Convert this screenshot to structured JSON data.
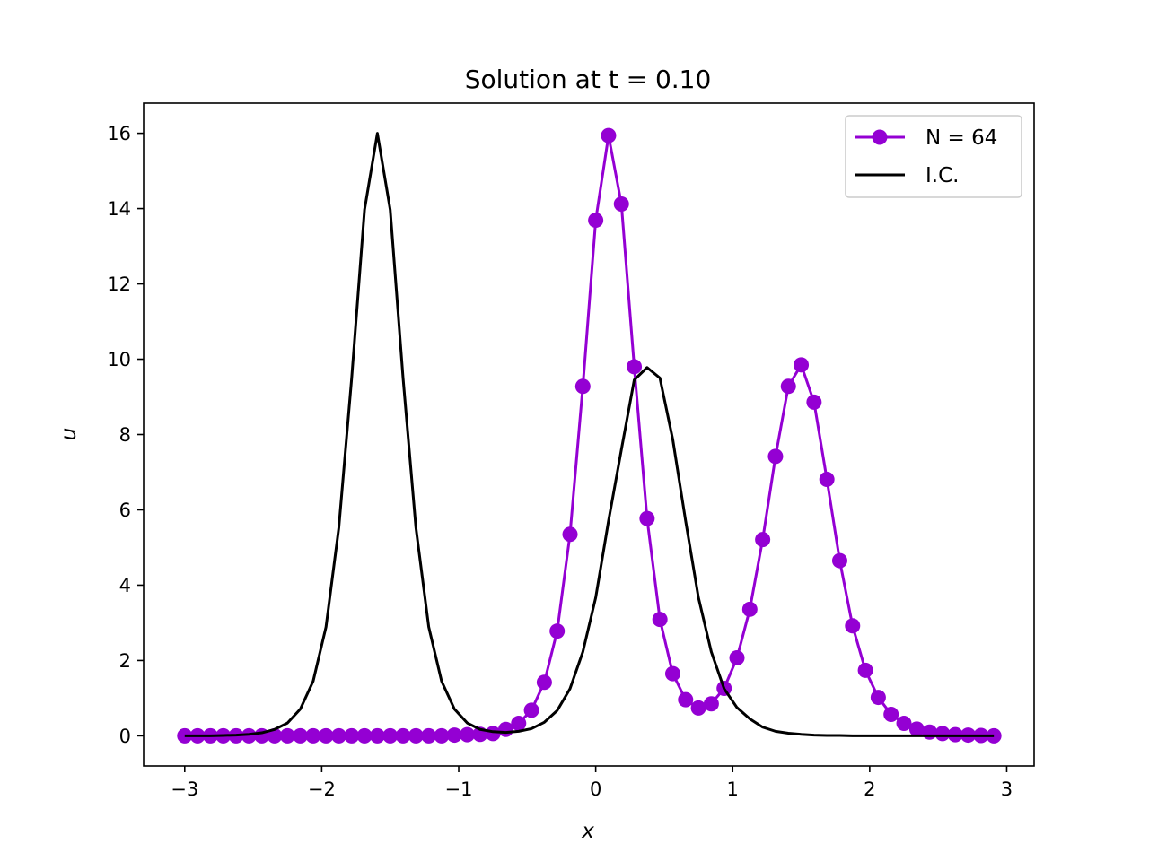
{
  "chart_data": {
    "type": "line",
    "title": "Solution at t = 0.10",
    "xlabel": "x",
    "ylabel": "u",
    "xlim": [
      -3.3,
      3.2
    ],
    "ylim": [
      -0.8,
      16.8
    ],
    "xticks": [
      -3,
      -2,
      -1,
      0,
      1,
      2,
      3
    ],
    "xtick_labels": [
      "−3",
      "−2",
      "−1",
      "0",
      "1",
      "2",
      "3"
    ],
    "yticks": [
      0,
      2,
      4,
      6,
      8,
      10,
      12,
      14,
      16
    ],
    "ytick_labels": [
      "0",
      "2",
      "4",
      "6",
      "8",
      "10",
      "12",
      "14",
      "16"
    ],
    "grid": false,
    "legend_position": "top-right",
    "series": [
      {
        "name": "N = 64",
        "color": "#9400d3",
        "marker": "circle",
        "x": [
          -3.0,
          -2.90625,
          -2.8125,
          -2.71875,
          -2.625,
          -2.53125,
          -2.4375,
          -2.34375,
          -2.25,
          -2.15625,
          -2.0625,
          -1.96875,
          -1.875,
          -1.78125,
          -1.6875,
          -1.59375,
          -1.5,
          -1.40625,
          -1.3125,
          -1.21875,
          -1.125,
          -1.03125,
          -0.9375,
          -0.84375,
          -0.75,
          -0.65625,
          -0.5625,
          -0.46875,
          -0.375,
          -0.28125,
          -0.1875,
          -0.09375,
          0.0,
          0.09375,
          0.1875,
          0.28125,
          0.375,
          0.46875,
          0.5625,
          0.65625,
          0.75,
          0.84375,
          0.9375,
          1.03125,
          1.125,
          1.21875,
          1.3125,
          1.40625,
          1.5,
          1.59375,
          1.6875,
          1.78125,
          1.875,
          1.96875,
          2.0625,
          2.15625,
          2.25,
          2.34375,
          2.4375,
          2.53125,
          2.625,
          2.71875,
          2.8125,
          2.90625
        ],
        "y": [
          0.0,
          0.0,
          0.0,
          0.0,
          0.0,
          0.0,
          0.0,
          0.0,
          0.0,
          0.0,
          0.0,
          0.0,
          0.0,
          0.0,
          0.0,
          0.0,
          0.0,
          0.0,
          0.0,
          0.0,
          0.0,
          0.02,
          0.03,
          0.04,
          0.06,
          0.17,
          0.33,
          0.68,
          1.42,
          2.78,
          5.35,
          9.28,
          13.69,
          15.94,
          14.12,
          9.8,
          5.77,
          3.09,
          1.65,
          0.96,
          0.74,
          0.85,
          1.26,
          2.07,
          3.36,
          5.21,
          7.42,
          9.28,
          9.85,
          8.86,
          6.81,
          4.65,
          2.92,
          1.74,
          1.02,
          0.57,
          0.33,
          0.18,
          0.1,
          0.06,
          0.03,
          0.02,
          0.01,
          0.0
        ]
      },
      {
        "name": "I.C.",
        "color": "#000000",
        "marker": "none",
        "x": [
          -3.0,
          -2.90625,
          -2.8125,
          -2.71875,
          -2.625,
          -2.53125,
          -2.4375,
          -2.34375,
          -2.25,
          -2.15625,
          -2.0625,
          -1.96875,
          -1.875,
          -1.78125,
          -1.6875,
          -1.59375,
          -1.5,
          -1.40625,
          -1.3125,
          -1.21875,
          -1.125,
          -1.03125,
          -0.9375,
          -0.84375,
          -0.75,
          -0.65625,
          -0.5625,
          -0.46875,
          -0.375,
          -0.28125,
          -0.1875,
          -0.09375,
          0.0,
          0.09375,
          0.1875,
          0.28125,
          0.375,
          0.46875,
          0.5625,
          0.65625,
          0.75,
          0.84375,
          0.9375,
          1.03125,
          1.125,
          1.21875,
          1.3125,
          1.40625,
          1.5,
          1.59375,
          1.6875,
          1.78125,
          1.875,
          1.96875,
          2.0625,
          2.15625,
          2.25,
          2.34375,
          2.4375,
          2.53125,
          2.625,
          2.71875,
          2.8125,
          2.90625
        ],
        "y": [
          0.0,
          0.0,
          0.0,
          0.01,
          0.02,
          0.04,
          0.08,
          0.17,
          0.34,
          0.71,
          1.45,
          2.89,
          5.53,
          9.5,
          13.97,
          16.0,
          13.97,
          9.5,
          5.53,
          2.89,
          1.45,
          0.71,
          0.34,
          0.17,
          0.11,
          0.09,
          0.12,
          0.19,
          0.36,
          0.67,
          1.25,
          2.23,
          3.67,
          5.71,
          7.6,
          9.45,
          9.78,
          9.5,
          7.87,
          5.71,
          3.67,
          2.23,
          1.25,
          0.75,
          0.45,
          0.23,
          0.12,
          0.07,
          0.04,
          0.02,
          0.01,
          0.01,
          0.0,
          0.0,
          0.0,
          0.0,
          0.0,
          0.0,
          0.0,
          0.0,
          0.0,
          0.0,
          0.0,
          0.0
        ]
      }
    ]
  }
}
